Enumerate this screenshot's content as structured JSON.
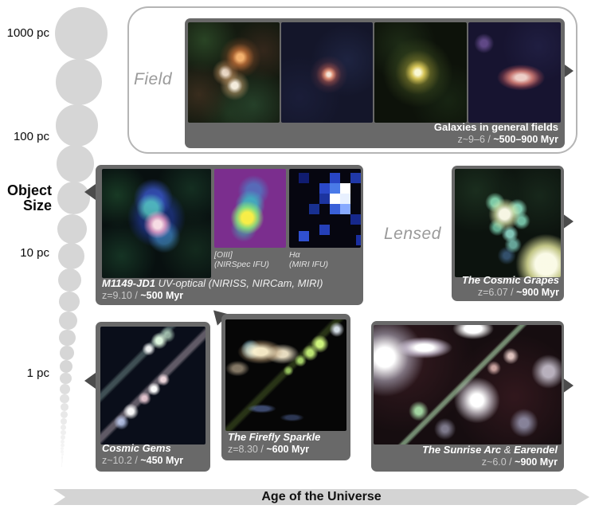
{
  "size_axis": {
    "title_line1": "Object",
    "title_line2": "Size",
    "ticks": [
      "1000 pc",
      "100 pc",
      "10 pc",
      "1 pc"
    ]
  },
  "age_axis": {
    "label": "Age of the Universe"
  },
  "categories": {
    "field": "Field",
    "lensed": "Lensed"
  },
  "panels": {
    "field": {
      "title": "Galaxies in general fields",
      "z": "z~9–6 / ",
      "age": "~500–900 Myr"
    },
    "m1149": {
      "name": "M1149-JD1",
      "desc": " UV-optical (NIRISS, NIRCam, MIRI)",
      "z": "z=9.10 / ",
      "age": "~500 Myr",
      "inset_oiii_line1": "[OIII]",
      "inset_oiii_line2": "(NIRSpec IFU)",
      "inset_ha_line1": "Hα",
      "inset_ha_line2": "(MIRI IFU)"
    },
    "grapes": {
      "title": "The Cosmic Grapes",
      "z": "z=6.07 / ",
      "age": "~900 Myr"
    },
    "gems": {
      "title": "Cosmic Gems",
      "z": "z~10.2 / ",
      "age": "~450 Myr"
    },
    "firefly": {
      "title": "The Firefly Sparkle",
      "z": "z=8.30 / ",
      "age": "~600 Myr"
    },
    "sunrise": {
      "title_main": "The Sunrise Arc",
      "title_amp": " & ",
      "title_earendel": "Earendel",
      "z": "z~6.0 / ",
      "age": "~900 Myr"
    }
  },
  "colors": {
    "card_bg": "#696969",
    "panel_border": "#b5b5b5",
    "category_text": "#9a9a9a",
    "axis_band": "#d4d4d4",
    "scale_circle": "#d6d6d6",
    "arrow": "#4c4c4c"
  }
}
